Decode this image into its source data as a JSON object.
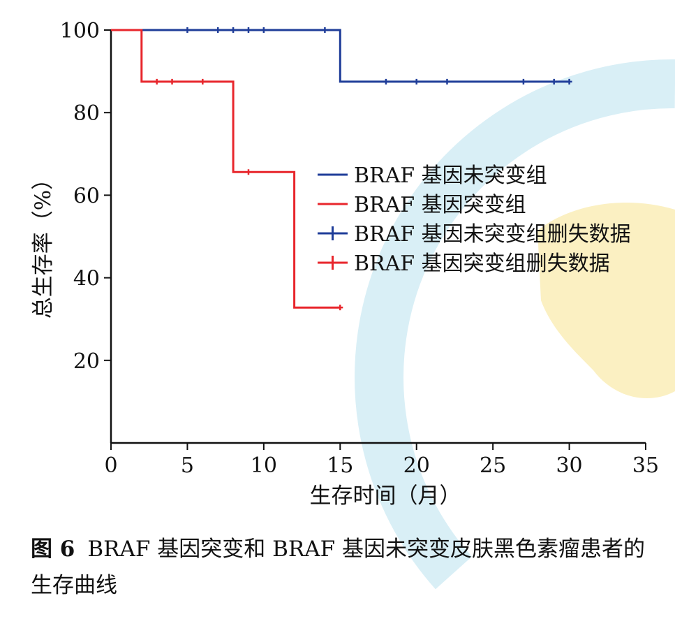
{
  "caption": {
    "label": "图 6",
    "text": "BRAF 基因突变和 BRAF 基因未突变皮肤黑色素瘤患者的生存曲线"
  },
  "colors": {
    "series_blue": "#1f3d99",
    "series_red": "#e8262c",
    "axis": "#111111",
    "watermark_blue": "#d9eff6",
    "watermark_yellow": "#fbf0c2"
  },
  "chart_data": {
    "type": "line",
    "subtype": "kaplan-meier step",
    "title": "",
    "xlabel": "生存时间（月）",
    "ylabel": "总生存率（%）",
    "xlim": [
      0,
      35
    ],
    "ylim": [
      0,
      100
    ],
    "xticks": [
      0,
      5,
      10,
      15,
      20,
      25,
      30,
      35
    ],
    "yticks": [
      20,
      40,
      60,
      80,
      100
    ],
    "grid": false,
    "legend_position": "center-right",
    "series": [
      {
        "name": "BRAF 基因未突变组",
        "color": "#1f3d99",
        "steps": [
          [
            0,
            100
          ],
          [
            15,
            100
          ],
          [
            15,
            87.5
          ],
          [
            30,
            87.5
          ]
        ]
      },
      {
        "name": "BRAF 基因突变组",
        "color": "#e8262c",
        "steps": [
          [
            0,
            100
          ],
          [
            2,
            100
          ],
          [
            2,
            87.5
          ],
          [
            8,
            87.5
          ],
          [
            8,
            65.6
          ],
          [
            12,
            65.6
          ],
          [
            12,
            32.8
          ],
          [
            15,
            32.8
          ]
        ]
      }
    ],
    "censored": [
      {
        "name": "BRAF 基因未突变组删失数据",
        "color": "#1f3d99",
        "points": [
          [
            5,
            100
          ],
          [
            7,
            100
          ],
          [
            8,
            100
          ],
          [
            9,
            100
          ],
          [
            10,
            100
          ],
          [
            14,
            100
          ],
          [
            18,
            87.5
          ],
          [
            20,
            87.5
          ],
          [
            22,
            87.5
          ],
          [
            27,
            87.5
          ],
          [
            29,
            87.5
          ],
          [
            30,
            87.5
          ]
        ]
      },
      {
        "name": "BRAF 基因突变组删失数据",
        "color": "#e8262c",
        "points": [
          [
            3,
            87.5
          ],
          [
            4,
            87.5
          ],
          [
            6,
            87.5
          ],
          [
            9,
            65.6
          ],
          [
            15,
            32.8
          ]
        ]
      }
    ]
  }
}
